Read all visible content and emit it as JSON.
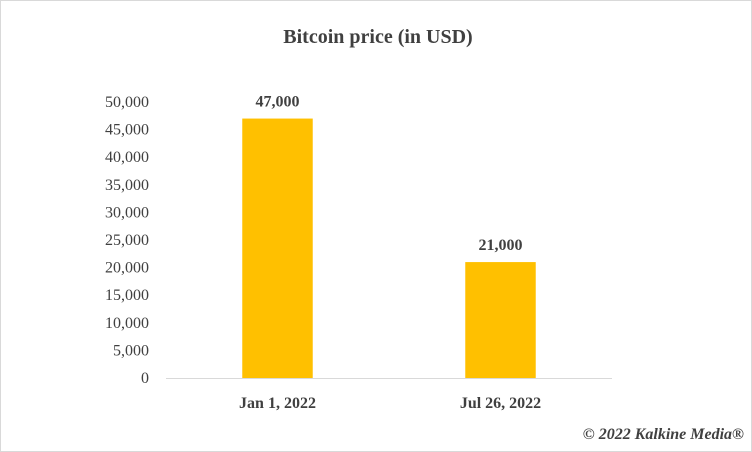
{
  "chart_data": {
    "type": "bar",
    "title": "Bitcoin price (in USD)",
    "categories": [
      "Jan 1, 2022",
      "Jul 26, 2022"
    ],
    "values": [
      47000,
      21000
    ],
    "data_labels": [
      "47,000",
      "21,000"
    ],
    "xlabel": "",
    "ylabel": "",
    "ylim": [
      0,
      50000
    ],
    "yticks": [
      0,
      5000,
      10000,
      15000,
      20000,
      25000,
      30000,
      35000,
      40000,
      45000,
      50000
    ],
    "ytick_labels": [
      "0",
      "5,000",
      "10,000",
      "15,000",
      "20,000",
      "25,000",
      "30,000",
      "35,000",
      "40,000",
      "45,000",
      "50,000"
    ],
    "grid": false,
    "legend": "none",
    "bar_color": "#FFC000",
    "axis_color": "#d9d9d9"
  },
  "watermark": "© 2022 Kalkine Media®"
}
